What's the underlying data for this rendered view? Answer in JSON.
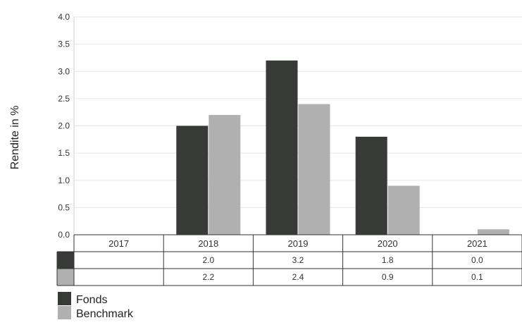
{
  "chart_data": {
    "type": "bar",
    "ylabel": "Rendite in %",
    "ylim": [
      0,
      4.0
    ],
    "yticks": [
      "0.0",
      "0.5",
      "1.0",
      "1.5",
      "2.0",
      "2.5",
      "3.0",
      "3.5",
      "4.0"
    ],
    "categories": [
      "2017",
      "2018",
      "2019",
      "2020",
      "2021"
    ],
    "series": [
      {
        "name": "Fonds",
        "color": "#383a37",
        "values": [
          null,
          2.0,
          3.2,
          1.8,
          0.0
        ],
        "labels": [
          "",
          "2.0",
          "3.2",
          "1.8",
          "0.0"
        ]
      },
      {
        "name": "Benchmark",
        "color": "#b0b0b0",
        "values": [
          null,
          2.2,
          2.4,
          0.9,
          0.1
        ],
        "labels": [
          "",
          "2.2",
          "2.4",
          "0.9",
          "0.1"
        ]
      }
    ],
    "grid": true,
    "legend": "bottom-left"
  }
}
